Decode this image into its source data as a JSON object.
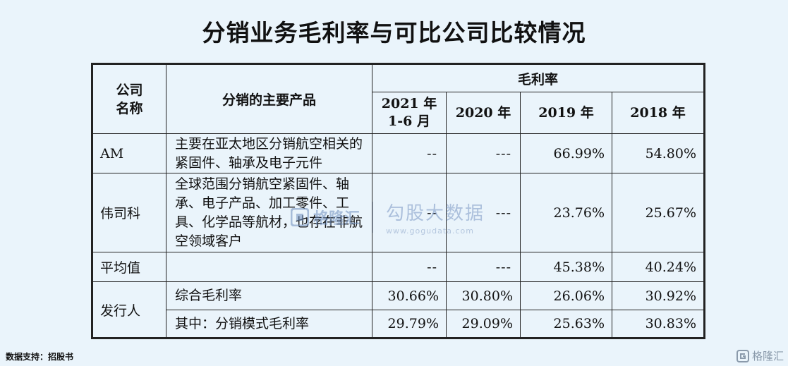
{
  "title": "分销业务毛利率与可比公司比较情况",
  "table": {
    "header": {
      "company": "公司\n名称",
      "products": "分销的主要产品",
      "margin_group": "毛利率",
      "years": [
        "2021 年\n1-6 月",
        "2020 年",
        "2019 年",
        "2018 年"
      ]
    },
    "rows": [
      {
        "company": "AM",
        "products": "主要在亚太地区分销航空相关的紧固件、轴承及电子元件",
        "values": [
          "--",
          "---",
          "66.99%",
          "54.80%"
        ]
      },
      {
        "company": "伟司科",
        "products": "全球范围分销航空紧固件、轴承、电子产品、加工零件、工具、化学品等航材，也存在非航空领域客户",
        "values": [
          "--",
          "---",
          "23.76%",
          "25.67%"
        ]
      },
      {
        "company": "平均值",
        "products": "",
        "values": [
          "--",
          "---",
          "45.38%",
          "40.24%"
        ]
      }
    ],
    "issuer": {
      "company": "发行人",
      "rows": [
        {
          "label": "综合毛利率",
          "values": [
            "30.66%",
            "30.80%",
            "26.06%",
            "30.92%"
          ]
        },
        {
          "label": "其中：分销模式毛利率",
          "values": [
            "29.79%",
            "29.09%",
            "25.63%",
            "30.83%"
          ]
        }
      ]
    }
  },
  "footer": "数据支持：招股书",
  "watermark": {
    "brand": "格隆汇",
    "brand2": "勾股大数据",
    "url": "www.gogudata.com"
  },
  "corner_logo": "格隆汇",
  "colors": {
    "background": "#eaf4fb",
    "border": "#222222",
    "watermark": "#7a97c3"
  }
}
